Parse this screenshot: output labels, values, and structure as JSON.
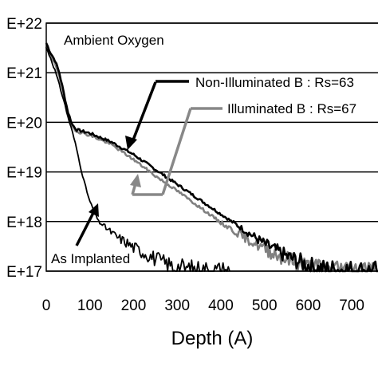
{
  "chart_data": {
    "type": "line",
    "title": "",
    "xlabel": "Depth (A)",
    "ylabel": "",
    "y_scale": "log",
    "xlim": [
      0,
      760
    ],
    "ylim_exponent": [
      17,
      22
    ],
    "x_ticks": [
      "0",
      "100",
      "200",
      "300",
      "400",
      "500",
      "600",
      "700"
    ],
    "y_ticks": [
      "E+22",
      "E+21",
      "E+20",
      "E+19",
      "E+18",
      "E+17"
    ],
    "grid": "horizontal",
    "annotations": {
      "ambient": "Ambient Oxygen",
      "non_illuminated": "Non-Illuminated B : Rs=63",
      "illuminated": "Illuminated B : Rs=67",
      "as_implanted": "As Implanted"
    },
    "series": [
      {
        "name": "Non-Illuminated B : Rs=63",
        "color": "#000000",
        "points": [
          [
            0,
            21.6
          ],
          [
            10,
            21.4
          ],
          [
            20,
            21.25
          ],
          [
            30,
            21.0
          ],
          [
            40,
            20.6
          ],
          [
            50,
            20.2
          ],
          [
            60,
            19.95
          ],
          [
            70,
            19.85
          ],
          [
            100,
            19.78
          ],
          [
            150,
            19.6
          ],
          [
            200,
            19.35
          ],
          [
            250,
            19.05
          ],
          [
            300,
            18.75
          ],
          [
            350,
            18.45
          ],
          [
            400,
            18.15
          ],
          [
            450,
            17.85
          ],
          [
            500,
            17.55
          ],
          [
            550,
            17.3
          ],
          [
            600,
            17.12
          ],
          [
            620,
            17.05
          ],
          [
            760,
            17.0
          ]
        ]
      },
      {
        "name": "Illuminated B : Rs=67",
        "color": "#808080",
        "points": [
          [
            0,
            21.5
          ],
          [
            10,
            21.35
          ],
          [
            20,
            21.2
          ],
          [
            30,
            20.95
          ],
          [
            40,
            20.55
          ],
          [
            50,
            20.15
          ],
          [
            60,
            19.92
          ],
          [
            70,
            19.82
          ],
          [
            100,
            19.74
          ],
          [
            150,
            19.55
          ],
          [
            200,
            19.25
          ],
          [
            250,
            18.92
          ],
          [
            300,
            18.62
          ],
          [
            350,
            18.3
          ],
          [
            400,
            17.98
          ],
          [
            450,
            17.7
          ],
          [
            500,
            17.45
          ],
          [
            550,
            17.25
          ],
          [
            600,
            17.08
          ],
          [
            760,
            17.02
          ]
        ]
      },
      {
        "name": "As Implanted",
        "color": "#000000",
        "points": [
          [
            0,
            21.5
          ],
          [
            10,
            21.3
          ],
          [
            20,
            21.05
          ],
          [
            30,
            20.75
          ],
          [
            40,
            20.45
          ],
          [
            50,
            20.1
          ],
          [
            60,
            19.8
          ],
          [
            70,
            19.45
          ],
          [
            80,
            19.05
          ],
          [
            90,
            18.7
          ],
          [
            100,
            18.4
          ],
          [
            110,
            18.2
          ],
          [
            120,
            18.0
          ],
          [
            140,
            17.85
          ],
          [
            160,
            17.7
          ],
          [
            180,
            17.6
          ],
          [
            200,
            17.48
          ],
          [
            230,
            17.35
          ],
          [
            260,
            17.2
          ],
          [
            290,
            17.1
          ],
          [
            330,
            17.04
          ],
          [
            420,
            17.0
          ]
        ]
      }
    ]
  }
}
